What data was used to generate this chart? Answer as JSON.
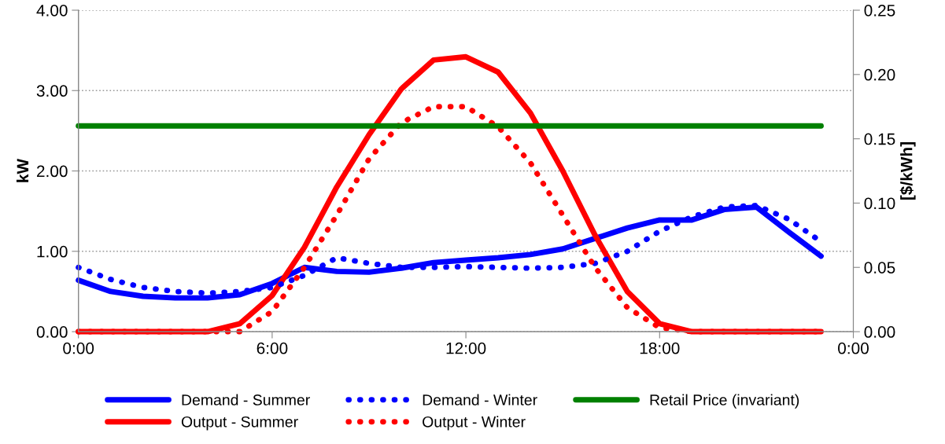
{
  "chart_data": {
    "type": "line",
    "x": [
      0,
      1,
      2,
      3,
      4,
      5,
      6,
      7,
      8,
      9,
      10,
      11,
      12,
      13,
      14,
      15,
      16,
      17,
      18,
      19,
      20,
      21,
      22,
      23
    ],
    "series": [
      {
        "name": "Demand - Summer",
        "color": "#0000ff",
        "line_style": "solid",
        "values": [
          0.64,
          0.5,
          0.44,
          0.42,
          0.42,
          0.46,
          0.6,
          0.8,
          0.75,
          0.74,
          0.79,
          0.86,
          0.89,
          0.92,
          0.96,
          1.03,
          1.16,
          1.29,
          1.39,
          1.39,
          1.52,
          1.55,
          1.24,
          0.94
        ]
      },
      {
        "name": "Output - Summer",
        "color": "#ff0000",
        "line_style": "solid",
        "values": [
          0,
          0,
          0,
          0,
          0,
          0.1,
          0.45,
          1.05,
          1.8,
          2.45,
          3.02,
          3.38,
          3.42,
          3.23,
          2.72,
          2.0,
          1.2,
          0.5,
          0.1,
          0,
          0,
          0,
          0,
          0
        ]
      },
      {
        "name": "Demand - Winter",
        "color": "#0000ff",
        "line_style": "dotted",
        "values": [
          0.8,
          0.65,
          0.55,
          0.5,
          0.48,
          0.5,
          0.55,
          0.7,
          0.92,
          0.85,
          0.8,
          0.8,
          0.81,
          0.8,
          0.79,
          0.8,
          0.85,
          1.0,
          1.25,
          1.43,
          1.55,
          1.57,
          1.4,
          1.12
        ]
      },
      {
        "name": "Output - Winter",
        "color": "#ff0000",
        "line_style": "dotted",
        "values": [
          0,
          0,
          0,
          0,
          0,
          0,
          0.25,
          0.8,
          1.45,
          2.15,
          2.6,
          2.8,
          2.8,
          2.55,
          2.1,
          1.45,
          0.8,
          0.3,
          0.05,
          0,
          0,
          0,
          0,
          0
        ]
      },
      {
        "name": "Retail Price (invariant)",
        "color": "#008000",
        "line_style": "solid",
        "axis": "y2",
        "values": [
          0.16,
          0.16,
          0.16,
          0.16,
          0.16,
          0.16,
          0.16,
          0.16,
          0.16,
          0.16,
          0.16,
          0.16,
          0.16,
          0.16,
          0.16,
          0.16,
          0.16,
          0.16,
          0.16,
          0.16,
          0.16,
          0.16,
          0.16,
          0.16
        ]
      }
    ],
    "ylabel": "kW",
    "y2label": "[$/kWh]",
    "xlim": [
      0,
      24
    ],
    "xticks": [
      {
        "value": 0,
        "label": "0:00"
      },
      {
        "value": 6,
        "label": "6:00"
      },
      {
        "value": 12,
        "label": "12:00"
      },
      {
        "value": 18,
        "label": "18:00"
      },
      {
        "value": 24,
        "label": "0:00"
      }
    ],
    "ylim": [
      0,
      4
    ],
    "yticks": [
      {
        "value": 0,
        "label": "0.00"
      },
      {
        "value": 1,
        "label": "1.00"
      },
      {
        "value": 2,
        "label": "2.00"
      },
      {
        "value": 3,
        "label": "3.00"
      },
      {
        "value": 4,
        "label": "4.00"
      }
    ],
    "y2lim": [
      0,
      0.25
    ],
    "y2ticks": [
      {
        "value": 0,
        "label": "0.00"
      },
      {
        "value": 0.05,
        "label": "0.05"
      },
      {
        "value": 0.1,
        "label": "0.10"
      },
      {
        "value": 0.15,
        "label": "0.15"
      },
      {
        "value": 0.2,
        "label": "0.20"
      },
      {
        "value": 0.25,
        "label": "0.25"
      }
    ],
    "grid": "y",
    "legend": "bottom",
    "marker": "none"
  }
}
